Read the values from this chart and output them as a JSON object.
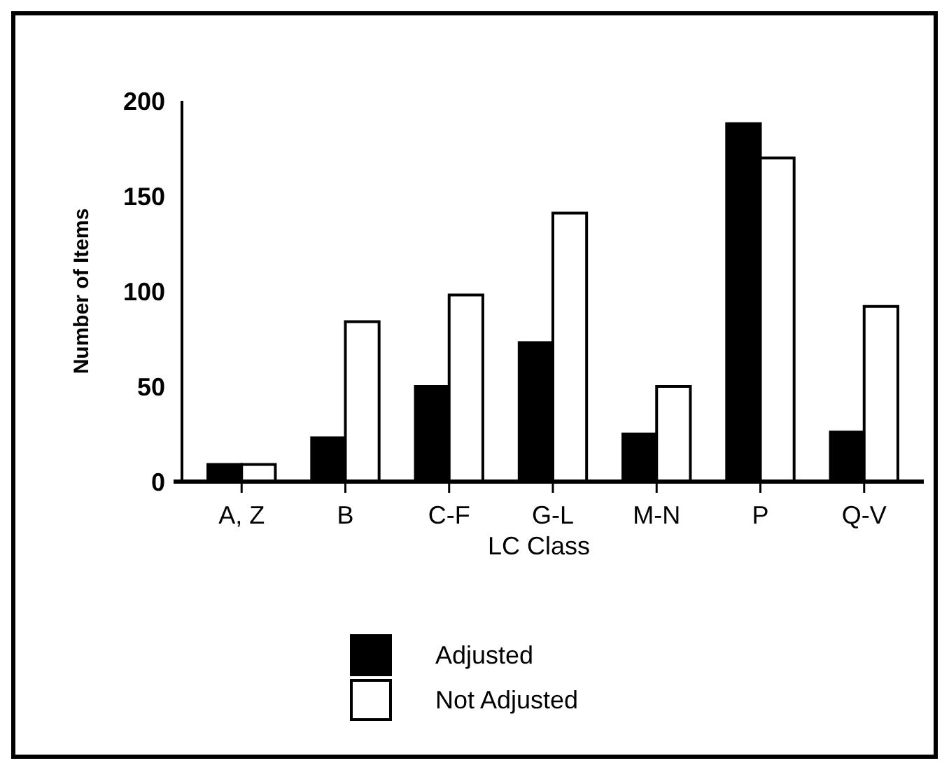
{
  "chart_data": {
    "type": "bar",
    "xlabel": "LC Class",
    "ylabel": "Number of Items",
    "categories": [
      "A, Z",
      "B",
      "C-F",
      "G-L",
      "M-N",
      "P",
      "Q-V"
    ],
    "series": [
      {
        "name": "Adjusted",
        "color": "#000000",
        "values": [
          9,
          23,
          50,
          73,
          25,
          188,
          26
        ]
      },
      {
        "name": "Not Adjusted",
        "color": "#ffffff",
        "values": [
          9,
          84,
          98,
          141,
          50,
          170,
          92
        ]
      }
    ],
    "ylim": [
      0,
      200
    ],
    "yticks": [
      0,
      50,
      100,
      150,
      200
    ],
    "legend": "bottom"
  }
}
